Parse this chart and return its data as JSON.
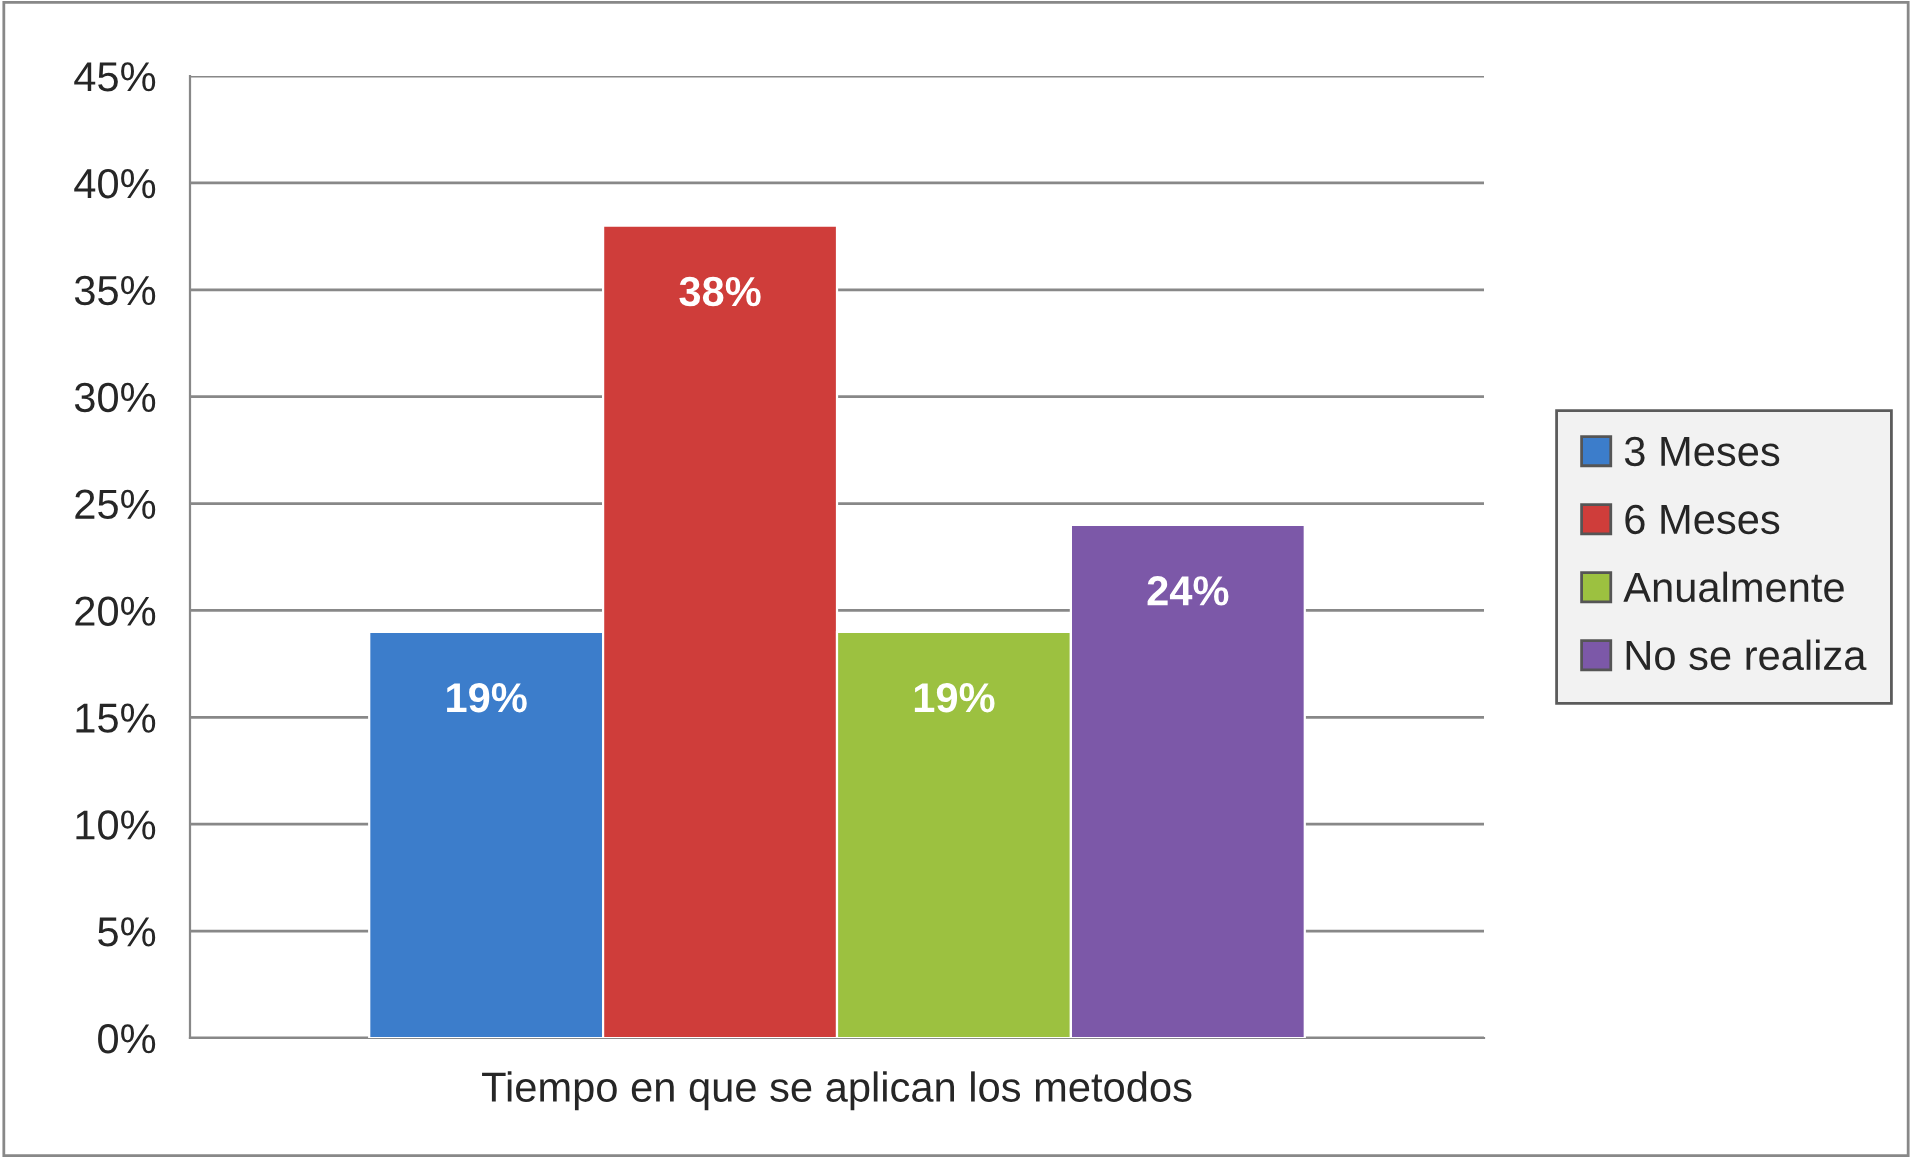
{
  "chart_data": {
    "type": "bar",
    "categories": [
      "Tiempo en que se aplican los metodos"
    ],
    "series": [
      {
        "name": "3 Meses",
        "color": "#3c7dcb",
        "values": [
          19
        ],
        "value_labels": [
          "19%"
        ]
      },
      {
        "name": "6 Meses",
        "color": "#cf3d3a",
        "values": [
          38
        ],
        "value_labels": [
          "38%"
        ]
      },
      {
        "name": "Anualmente",
        "color": "#9cc140",
        "values": [
          19
        ],
        "value_labels": [
          "19%"
        ]
      },
      {
        "name": "No se realiza",
        "color": "#7c58a8",
        "values": [
          24
        ],
        "value_labels": [
          "24%"
        ]
      }
    ],
    "ylim": [
      0,
      45
    ],
    "yticks": [
      {
        "value": 0,
        "label": "0%"
      },
      {
        "value": 5,
        "label": "5%"
      },
      {
        "value": 10,
        "label": "10%"
      },
      {
        "value": 15,
        "label": "15%"
      },
      {
        "value": 20,
        "label": "20%"
      },
      {
        "value": 25,
        "label": "25%"
      },
      {
        "value": 30,
        "label": "30%"
      },
      {
        "value": 35,
        "label": "35%"
      },
      {
        "value": 40,
        "label": "40%"
      },
      {
        "value": 45,
        "label": "45%"
      }
    ],
    "grid": "y",
    "legend": "right"
  }
}
